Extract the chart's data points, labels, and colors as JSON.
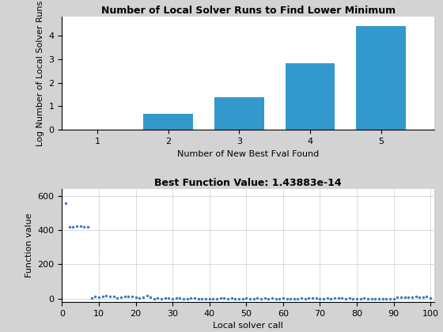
{
  "bar_x": [
    1,
    2,
    3,
    4,
    5
  ],
  "bar_heights": [
    0,
    0.693,
    1.386,
    2.833,
    4.382
  ],
  "bar_color": "#3399CC",
  "bar_title": "Number of Local Solver Runs to Find Lower Minimum",
  "bar_xlabel": "Number of New Best Fval Found",
  "bar_ylabel": "Log Number of Local Solver Runs",
  "bar_xlim": [
    0.5,
    5.75
  ],
  "bar_ylim": [
    0,
    4.8
  ],
  "bar_xticks": [
    1,
    2,
    3,
    4,
    5
  ],
  "bar_yticks": [
    0,
    1,
    2,
    3,
    4
  ],
  "scatter_title": "Best Function Value: 1.43883e-14",
  "scatter_xlabel": "Local solver call",
  "scatter_ylabel": "Function value",
  "scatter_xlim": [
    0,
    101
  ],
  "scatter_ylim": [
    -20,
    640
  ],
  "scatter_yticks": [
    0,
    200,
    400,
    600
  ],
  "scatter_xticks": [
    0,
    10,
    20,
    30,
    40,
    50,
    60,
    70,
    80,
    90,
    100
  ],
  "scatter_color": "#3B7BBE",
  "scatter_marker_size": 6,
  "background_color": "#D3D3D3",
  "fig_width": 5.6,
  "fig_height": 4.2,
  "title_fontsize": 9,
  "label_fontsize": 8,
  "tick_fontsize": 8
}
